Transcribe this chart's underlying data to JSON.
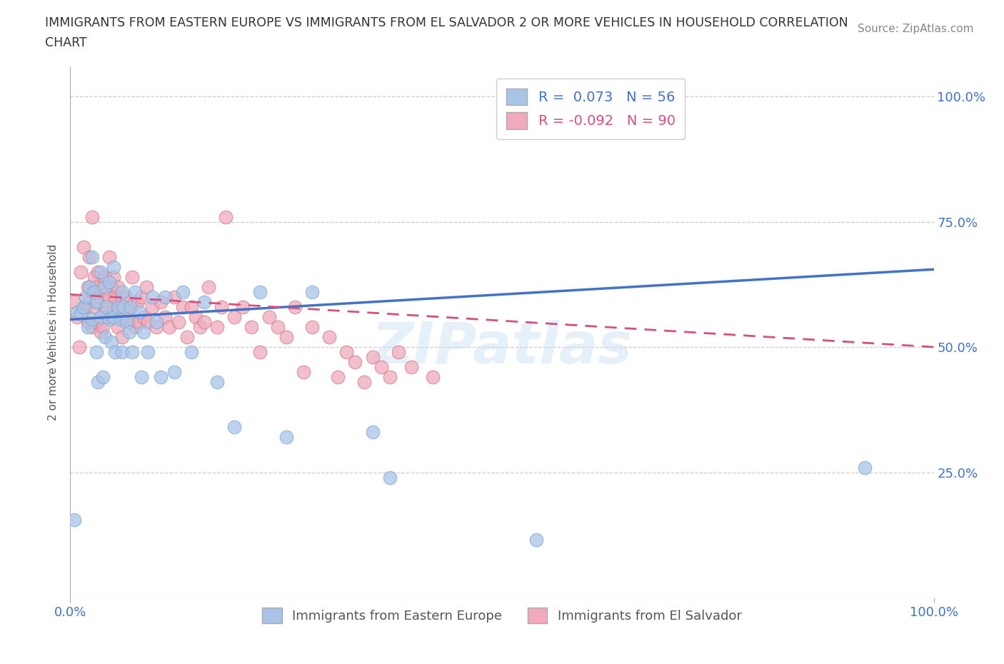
{
  "title_line1": "IMMIGRANTS FROM EASTERN EUROPE VS IMMIGRANTS FROM EL SALVADOR 2 OR MORE VEHICLES IN HOUSEHOLD CORRELATION",
  "title_line2": "CHART",
  "source_text": "Source: ZipAtlas.com",
  "ylabel": "2 or more Vehicles in Household",
  "xlim": [
    0.0,
    1.0
  ],
  "ylim": [
    0.0,
    1.05
  ],
  "x_ticks": [
    0.0,
    1.0
  ],
  "x_tick_labels": [
    "0.0%",
    "100.0%"
  ],
  "y_ticks": [
    0.25,
    0.5,
    0.75,
    1.0
  ],
  "y_tick_labels": [
    "25.0%",
    "50.0%",
    "75.0%",
    "100.0%"
  ],
  "blue_R": 0.073,
  "blue_N": 56,
  "pink_R": -0.092,
  "pink_N": 90,
  "blue_color": "#aac4e8",
  "pink_color": "#f0aabb",
  "blue_edge": "#7aaad0",
  "pink_edge": "#d07888",
  "blue_line_color": "#4472c4",
  "pink_line_color": "#d45080",
  "legend_blue_label": "Immigrants from Eastern Europe",
  "legend_pink_label": "Immigrants from El Salvador",
  "watermark": "ZIPatlas",
  "blue_line_y0": 0.555,
  "blue_line_y1": 0.655,
  "pink_line_y0": 0.605,
  "pink_line_y1": 0.5,
  "blue_scatter_x": [
    0.005,
    0.008,
    0.012,
    0.015,
    0.018,
    0.02,
    0.022,
    0.025,
    0.025,
    0.028,
    0.03,
    0.03,
    0.032,
    0.035,
    0.035,
    0.038,
    0.04,
    0.04,
    0.042,
    0.045,
    0.045,
    0.048,
    0.05,
    0.05,
    0.052,
    0.055,
    0.058,
    0.06,
    0.06,
    0.062,
    0.065,
    0.068,
    0.07,
    0.072,
    0.075,
    0.08,
    0.082,
    0.085,
    0.09,
    0.095,
    0.1,
    0.105,
    0.11,
    0.12,
    0.13,
    0.14,
    0.155,
    0.17,
    0.19,
    0.22,
    0.25,
    0.28,
    0.35,
    0.37,
    0.54,
    0.92
  ],
  "blue_scatter_y": [
    0.155,
    0.57,
    0.565,
    0.58,
    0.6,
    0.54,
    0.62,
    0.68,
    0.555,
    0.61,
    0.59,
    0.49,
    0.43,
    0.56,
    0.65,
    0.44,
    0.52,
    0.62,
    0.58,
    0.555,
    0.63,
    0.51,
    0.56,
    0.66,
    0.49,
    0.58,
    0.555,
    0.49,
    0.61,
    0.58,
    0.55,
    0.53,
    0.58,
    0.49,
    0.61,
    0.57,
    0.44,
    0.53,
    0.49,
    0.6,
    0.55,
    0.44,
    0.6,
    0.45,
    0.61,
    0.49,
    0.59,
    0.43,
    0.34,
    0.61,
    0.32,
    0.61,
    0.33,
    0.24,
    0.115,
    0.26
  ],
  "pink_scatter_x": [
    0.005,
    0.008,
    0.01,
    0.012,
    0.015,
    0.015,
    0.018,
    0.02,
    0.02,
    0.022,
    0.022,
    0.025,
    0.025,
    0.025,
    0.028,
    0.028,
    0.03,
    0.03,
    0.032,
    0.032,
    0.035,
    0.035,
    0.038,
    0.038,
    0.04,
    0.04,
    0.042,
    0.042,
    0.045,
    0.045,
    0.048,
    0.048,
    0.05,
    0.05,
    0.052,
    0.055,
    0.055,
    0.058,
    0.06,
    0.06,
    0.062,
    0.065,
    0.068,
    0.07,
    0.072,
    0.075,
    0.078,
    0.08,
    0.082,
    0.085,
    0.088,
    0.09,
    0.095,
    0.1,
    0.105,
    0.11,
    0.115,
    0.12,
    0.125,
    0.13,
    0.135,
    0.14,
    0.145,
    0.15,
    0.155,
    0.16,
    0.17,
    0.175,
    0.18,
    0.19,
    0.2,
    0.21,
    0.22,
    0.23,
    0.24,
    0.25,
    0.26,
    0.27,
    0.28,
    0.3,
    0.31,
    0.32,
    0.33,
    0.34,
    0.35,
    0.36,
    0.37,
    0.38,
    0.395,
    0.42
  ],
  "pink_scatter_y": [
    0.59,
    0.56,
    0.5,
    0.65,
    0.7,
    0.58,
    0.58,
    0.62,
    0.55,
    0.6,
    0.68,
    0.54,
    0.61,
    0.76,
    0.58,
    0.64,
    0.55,
    0.62,
    0.59,
    0.65,
    0.6,
    0.53,
    0.54,
    0.62,
    0.57,
    0.64,
    0.56,
    0.59,
    0.6,
    0.68,
    0.56,
    0.62,
    0.58,
    0.64,
    0.6,
    0.54,
    0.62,
    0.58,
    0.6,
    0.52,
    0.56,
    0.6,
    0.55,
    0.58,
    0.64,
    0.54,
    0.59,
    0.55,
    0.6,
    0.56,
    0.62,
    0.55,
    0.58,
    0.54,
    0.59,
    0.56,
    0.54,
    0.6,
    0.55,
    0.58,
    0.52,
    0.58,
    0.56,
    0.54,
    0.55,
    0.62,
    0.54,
    0.58,
    0.76,
    0.56,
    0.58,
    0.54,
    0.49,
    0.56,
    0.54,
    0.52,
    0.58,
    0.45,
    0.54,
    0.52,
    0.44,
    0.49,
    0.47,
    0.43,
    0.48,
    0.46,
    0.44,
    0.49,
    0.46,
    0.44
  ]
}
